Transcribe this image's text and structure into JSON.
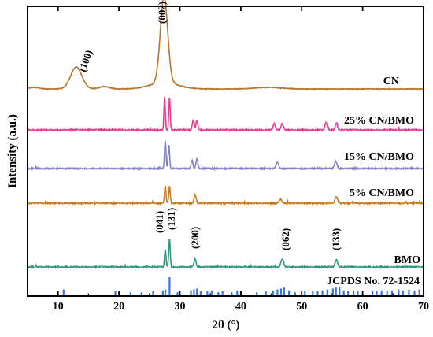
{
  "chart_data": {
    "type": "line",
    "xlabel": "2θ (°)",
    "ylabel": "Intensity (a.u.)",
    "xlim": [
      5,
      70
    ],
    "xticks": [
      10,
      20,
      30,
      40,
      50,
      60,
      70
    ],
    "y_ticks_shown": false,
    "grid": false,
    "series": [
      {
        "name": "CN",
        "color": "#b8752a",
        "peaks": [
          {
            "x": 13.0,
            "label": "(100)"
          },
          {
            "x": 27.4,
            "label": "(002)"
          }
        ]
      },
      {
        "name": "25% CN/BMO",
        "color": "#ee3d8e",
        "peaks": [
          {
            "x": 27.5
          },
          {
            "x": 28.3
          },
          {
            "x": 32.2
          },
          {
            "x": 32.8
          },
          {
            "x": 45.5
          },
          {
            "x": 46.8
          },
          {
            "x": 54.0
          },
          {
            "x": 55.7
          }
        ]
      },
      {
        "name": "15% CN/BMO",
        "color": "#8782c6",
        "peaks": [
          {
            "x": 27.6
          },
          {
            "x": 28.2
          },
          {
            "x": 32.0
          },
          {
            "x": 32.8
          },
          {
            "x": 46.0
          },
          {
            "x": 55.6
          }
        ]
      },
      {
        "name": "5% CN/BMO",
        "color": "#c97f1c",
        "peaks": [
          {
            "x": 27.6
          },
          {
            "x": 28.3
          },
          {
            "x": 32.5
          },
          {
            "x": 46.5
          },
          {
            "x": 55.7
          }
        ]
      },
      {
        "name": "BMO",
        "color": "#2f9a80",
        "peaks": [
          {
            "x": 27.6,
            "label": "(041)"
          },
          {
            "x": 28.3,
            "label": "(131)"
          },
          {
            "x": 32.5,
            "label": "(200)"
          },
          {
            "x": 46.8,
            "label": "(062)"
          },
          {
            "x": 55.7,
            "label": "(133)"
          }
        ]
      }
    ],
    "reference": {
      "name": "JCPDS No. 72-1524",
      "color": "#3a78e0",
      "lines": [
        {
          "x": 10.9,
          "rel": 0.35
        },
        {
          "x": 19.4,
          "rel": 0.25
        },
        {
          "x": 21.9,
          "rel": 0.2
        },
        {
          "x": 23.7,
          "rel": 0.2
        },
        {
          "x": 25.6,
          "rel": 0.25
        },
        {
          "x": 27.2,
          "rel": 0.3
        },
        {
          "x": 27.6,
          "rel": 0.35
        },
        {
          "x": 28.3,
          "rel": 1.0
        },
        {
          "x": 29.6,
          "rel": 0.2
        },
        {
          "x": 31.8,
          "rel": 0.3
        },
        {
          "x": 32.3,
          "rel": 0.35
        },
        {
          "x": 32.8,
          "rel": 0.4
        },
        {
          "x": 33.4,
          "rel": 0.25
        },
        {
          "x": 34.5,
          "rel": 0.25
        },
        {
          "x": 35.2,
          "rel": 0.3
        },
        {
          "x": 36.3,
          "rel": 0.2
        },
        {
          "x": 37.0,
          "rel": 0.25
        },
        {
          "x": 38.5,
          "rel": 0.2
        },
        {
          "x": 39.4,
          "rel": 0.3
        },
        {
          "x": 40.1,
          "rel": 0.25
        },
        {
          "x": 42.6,
          "rel": 0.2
        },
        {
          "x": 44.1,
          "rel": 0.25
        },
        {
          "x": 45.3,
          "rel": 0.3
        },
        {
          "x": 46.0,
          "rel": 0.35
        },
        {
          "x": 46.6,
          "rel": 0.4
        },
        {
          "x": 47.1,
          "rel": 0.45
        },
        {
          "x": 47.9,
          "rel": 0.3
        },
        {
          "x": 48.9,
          "rel": 0.2
        },
        {
          "x": 50.5,
          "rel": 0.25
        },
        {
          "x": 51.8,
          "rel": 0.25
        },
        {
          "x": 52.6,
          "rel": 0.25
        },
        {
          "x": 53.4,
          "rel": 0.3
        },
        {
          "x": 54.2,
          "rel": 0.35
        },
        {
          "x": 55.1,
          "rel": 0.4
        },
        {
          "x": 55.6,
          "rel": 0.5
        },
        {
          "x": 56.2,
          "rel": 0.45
        },
        {
          "x": 56.9,
          "rel": 0.3
        },
        {
          "x": 57.6,
          "rel": 0.25
        },
        {
          "x": 58.5,
          "rel": 0.3
        },
        {
          "x": 59.2,
          "rel": 0.25
        },
        {
          "x": 61.6,
          "rel": 0.3
        },
        {
          "x": 62.3,
          "rel": 0.25
        },
        {
          "x": 63.1,
          "rel": 0.3
        },
        {
          "x": 64.0,
          "rel": 0.25
        },
        {
          "x": 64.8,
          "rel": 0.3
        },
        {
          "x": 65.9,
          "rel": 0.35
        },
        {
          "x": 66.6,
          "rel": 0.3
        },
        {
          "x": 67.6,
          "rel": 0.35
        },
        {
          "x": 68.5,
          "rel": 0.3
        },
        {
          "x": 69.3,
          "rel": 0.35
        }
      ]
    }
  }
}
